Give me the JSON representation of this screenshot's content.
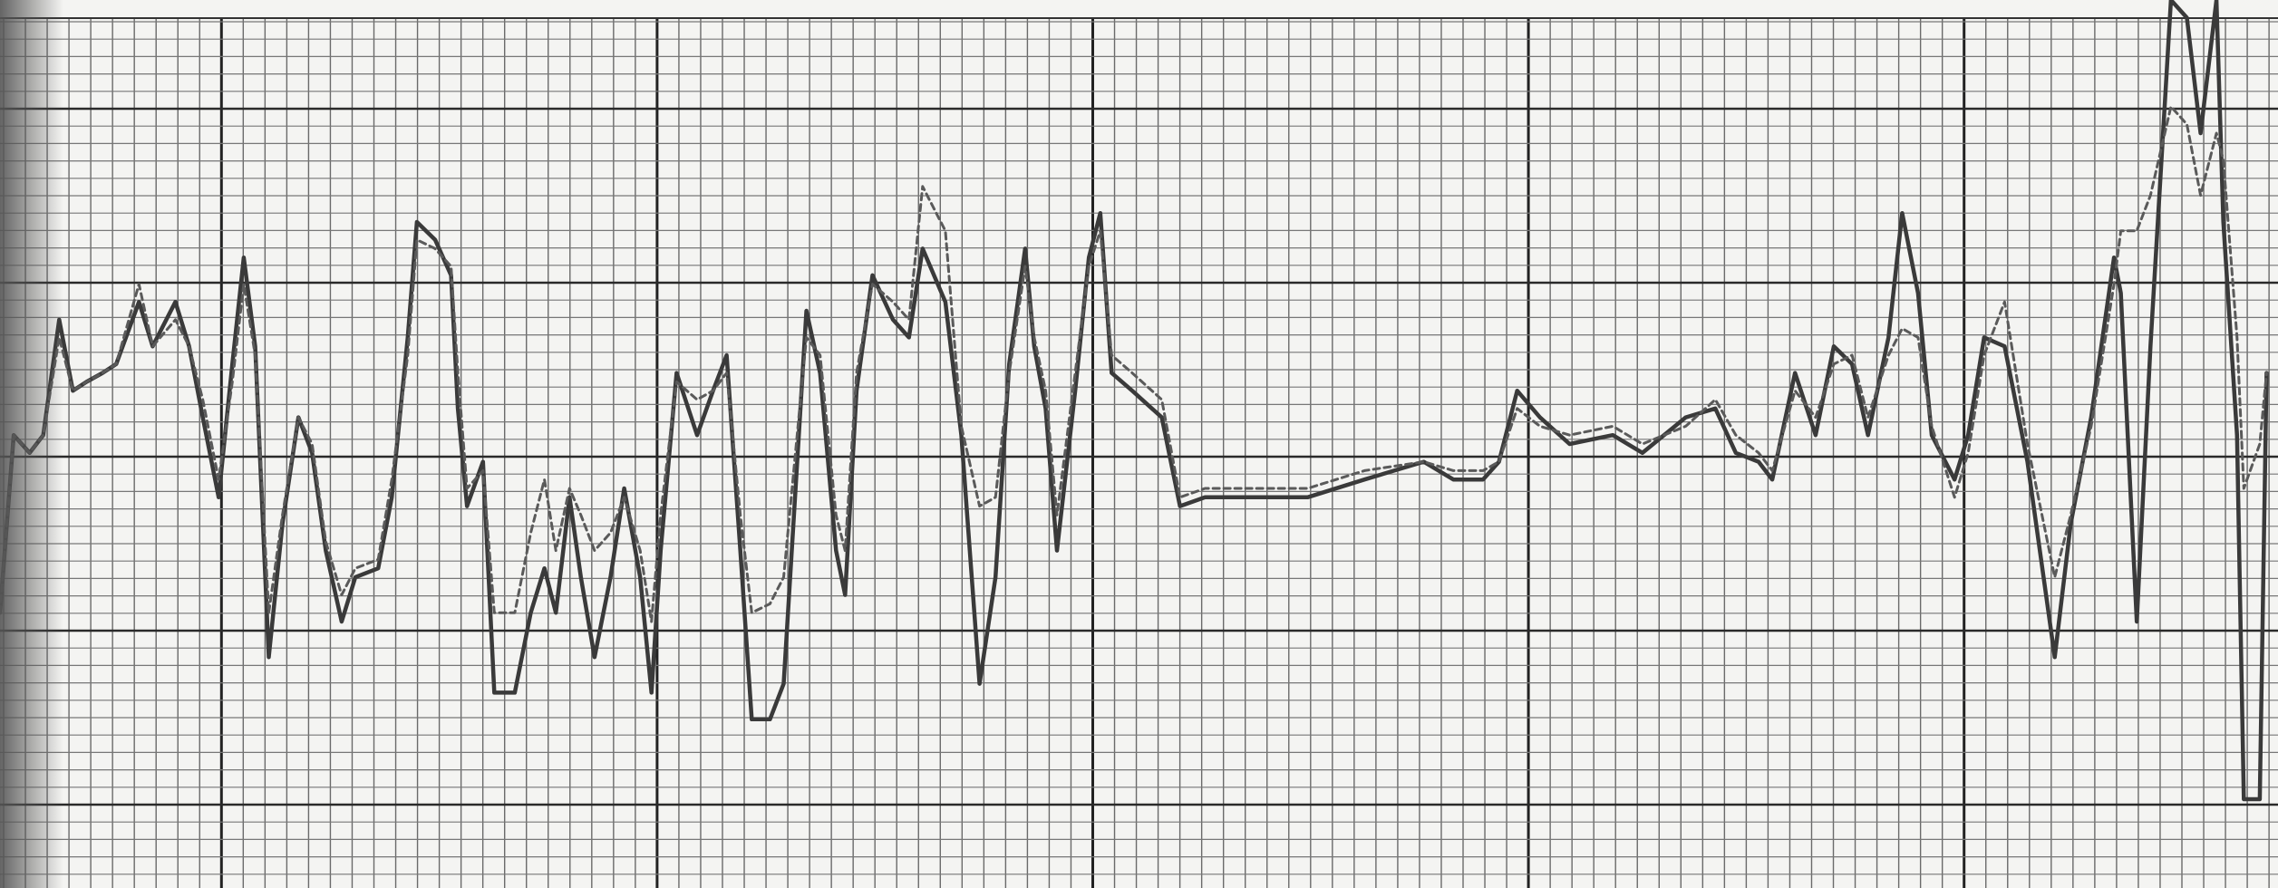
{
  "chart_data": {
    "type": "line",
    "xlim": [
      0,
      100
    ],
    "ylim": [
      0,
      100
    ],
    "x": [
      0,
      0.6,
      1.3,
      1.9,
      2.6,
      3.2,
      3.8,
      4.5,
      5.1,
      6.1,
      6.7,
      7.7,
      8.3,
      8.9,
      9.6,
      10.2,
      10.7,
      11.2,
      11.8,
      12.4,
      13.1,
      13.7,
      14.3,
      15,
      15.6,
      16.6,
      17.2,
      17.9,
      18.3,
      19.1,
      19.8,
      20.1,
      20.5,
      21.2,
      21.7,
      22.6,
      23.3,
      23.9,
      24.4,
      25,
      25.5,
      26.1,
      26.8,
      27.4,
      28.1,
      28.6,
      29,
      29.7,
      30.6,
      31.3,
      31.9,
      32.5,
      33,
      33.8,
      34.4,
      35.4,
      36,
      36.7,
      37.1,
      37.6,
      38.3,
      39.2,
      39.9,
      40.5,
      41.5,
      42.2,
      43,
      43.7,
      44.3,
      45,
      45.4,
      45.9,
      46.4,
      47.2,
      47.8,
      48.3,
      48.8,
      49.7,
      51,
      51.8,
      52.9,
      54.8,
      57.4,
      59.9,
      62.5,
      63.8,
      65.1,
      65.8,
      66.6,
      67.6,
      68.9,
      70.8,
      72.1,
      74,
      75.3,
      76.2,
      77.2,
      77.8,
      78.8,
      79.7,
      80.5,
      81.3,
      82,
      82.9,
      83.5,
      84.2,
      84.8,
      85.8,
      86.4,
      87.1,
      88,
      89,
      90.2,
      90.9,
      91.8,
      92.8,
      93.1,
      93.8,
      94.4,
      95.3,
      96,
      96.6,
      97.3,
      97.6,
      98.2,
      98.5,
      99.2,
      99.5
    ],
    "series": [
      {
        "color": "#3a3a3a",
        "dash": false,
        "values": [
          31,
          51,
          49,
          51,
          64,
          56,
          57,
          58,
          59,
          66,
          61,
          66,
          61,
          53,
          44,
          59,
          71,
          61,
          26,
          41,
          53,
          49,
          38,
          30,
          35,
          36,
          44,
          62,
          75,
          73,
          69,
          54,
          43,
          48,
          22,
          22,
          31,
          36,
          31,
          44,
          35,
          26,
          35,
          45,
          35,
          22,
          38,
          58,
          51,
          56,
          60,
          38,
          19,
          19,
          23,
          65,
          58,
          38,
          33,
          56,
          69,
          64,
          62,
          72,
          66,
          51,
          23,
          35,
          59,
          72,
          61,
          54,
          38,
          56,
          71,
          76,
          58,
          56,
          53,
          43,
          44,
          44,
          44,
          46,
          48,
          46,
          46,
          48,
          56,
          53,
          50,
          51,
          49,
          53,
          54,
          49,
          48,
          46,
          58,
          51,
          61,
          59,
          51,
          62,
          76,
          67,
          51,
          46,
          51,
          62,
          61,
          48,
          26,
          41,
          53,
          71,
          67,
          30,
          61,
          100,
          98,
          85,
          100,
          75,
          51,
          10,
          10,
          58
        ]
      },
      {
        "color": "#5a5a5a",
        "dash": true,
        "values": [
          31,
          51,
          49,
          51,
          62,
          56,
          57,
          58,
          59,
          68,
          61,
          64,
          61,
          55,
          46,
          57,
          68,
          60,
          31,
          42,
          53,
          50,
          39,
          33,
          36,
          37,
          46,
          60,
          73,
          72,
          70,
          58,
          45,
          47,
          31,
          31,
          40,
          46,
          38,
          45,
          42,
          38,
          40,
          44,
          38,
          30,
          42,
          57,
          55,
          56,
          58,
          42,
          31,
          32,
          35,
          62,
          60,
          42,
          38,
          58,
          68,
          66,
          64,
          79,
          74,
          52,
          43,
          44,
          58,
          70,
          62,
          56,
          42,
          58,
          70,
          74,
          60,
          58,
          55,
          44,
          45,
          45,
          45,
          47,
          48,
          47,
          47,
          48,
          54,
          52,
          51,
          52,
          50,
          52,
          55,
          51,
          49,
          47,
          56,
          53,
          59,
          60,
          53,
          60,
          63,
          62,
          52,
          44,
          49,
          60,
          66,
          50,
          35,
          42,
          52,
          68,
          74,
          74,
          78,
          88,
          86,
          78,
          85,
          82,
          62,
          45,
          50,
          58
        ]
      }
    ]
  }
}
